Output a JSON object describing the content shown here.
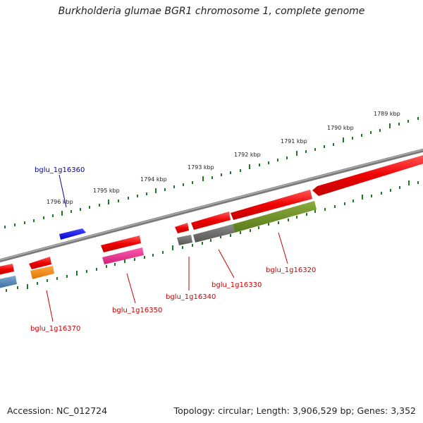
{
  "title": "Burkholderia glumae BGR1 chromosome 1, complete genome",
  "footer": {
    "accession": "Accession: NC_012724",
    "summary": "Topology: circular; Length: 3,906,529 bp; Genes: 3,352"
  },
  "scale_labels": [
    "1789 kbp",
    "1790 kbp",
    "1791 kbp",
    "1792 kbp",
    "1793 kbp",
    "1794 kbp",
    "1795 kbp",
    "1796 kbp"
  ],
  "gene_labels": [
    "bglu_1g16320",
    "bglu_1g16330",
    "bglu_1g16340",
    "bglu_1g16350",
    "bglu_1g16360",
    "bglu_1g16370"
  ],
  "colors": {
    "red_gene": "#e60000",
    "cds_red": "#f03030",
    "blue_gene": "#0000ee",
    "grey_cds": "#6a6a6a",
    "olive_cds": "#6b8e23",
    "magenta_cds": "#e0308a",
    "orange_cds": "#f08c00",
    "steel_cds": "#4f86b8",
    "tick_green": "#1f7a1f",
    "backbone": "#8c8c8c",
    "label_red": "#cc0000",
    "label_blue": "#0000aa"
  }
}
